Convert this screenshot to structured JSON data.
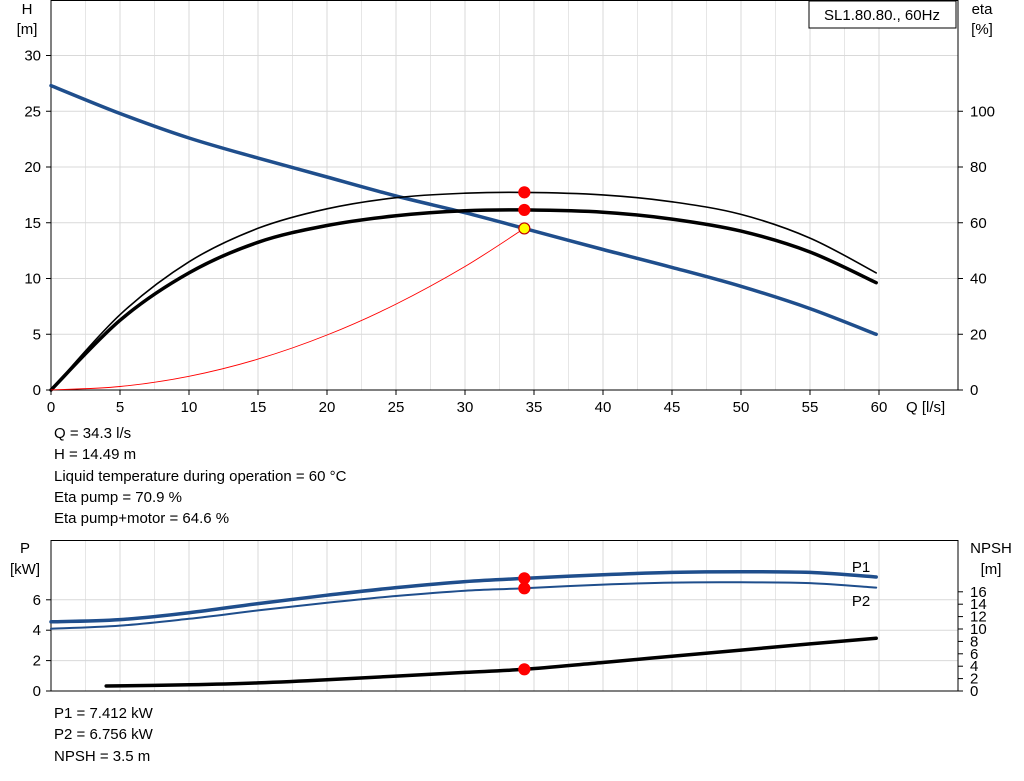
{
  "chart_data": [
    {
      "type": "line",
      "title": "SL1.80.80., 60Hz",
      "xlabel": "Q [l/s]",
      "ylabel": "H [m]",
      "y2label": "eta [%]",
      "xlim": [
        0,
        61
      ],
      "ylim": [
        0,
        32
      ],
      "y2lim": [
        0,
        128
      ],
      "xticks": [
        0,
        5,
        10,
        15,
        20,
        25,
        30,
        35,
        40,
        45,
        50,
        55,
        60
      ],
      "yticks": [
        0,
        5,
        10,
        15,
        20,
        25,
        30
      ],
      "y2ticks": [
        0,
        20,
        40,
        60,
        80,
        100
      ],
      "grid": true,
      "series": [
        {
          "id": "H",
          "axis": "left",
          "color": "#1f4e8c",
          "x": [
            0,
            5,
            10,
            15,
            20,
            25,
            30,
            34.3,
            40,
            45,
            50,
            55,
            59.8
          ],
          "y": [
            27.3,
            24.8,
            22.6,
            20.8,
            19.1,
            17.4,
            15.9,
            14.49,
            12.6,
            11.0,
            9.3,
            7.3,
            5.0
          ]
        },
        {
          "id": "eta_pump",
          "axis": "right",
          "color": "#000000",
          "x": [
            0,
            5,
            10,
            15,
            20,
            25,
            30,
            34.3,
            40,
            45,
            50,
            55,
            59.8
          ],
          "y": [
            0,
            27,
            46,
            58,
            65,
            69,
            70.6,
            70.9,
            70,
            67.5,
            63,
            54.5,
            42
          ]
        },
        {
          "id": "eta_pump_motor",
          "axis": "right",
          "color": "#000000",
          "x": [
            0,
            5,
            10,
            15,
            20,
            25,
            30,
            34.3,
            40,
            45,
            50,
            55,
            59.8
          ],
          "y": [
            0,
            25,
            42,
            53,
            59,
            62.5,
            64.3,
            64.6,
            63.8,
            61.3,
            57,
            49.5,
            38.5
          ]
        },
        {
          "id": "system_curve",
          "axis": "left",
          "color": "#ff0000",
          "x": [
            0,
            5,
            10,
            15,
            20,
            25,
            30,
            34.3
          ],
          "y": [
            0,
            0.31,
            1.23,
            2.77,
            4.93,
            7.7,
            11.08,
            14.49
          ]
        }
      ],
      "operating_points": [
        {
          "x": 34.3,
          "y": 70.9,
          "axis": "right",
          "color": "#ff0000"
        },
        {
          "x": 34.3,
          "y": 64.6,
          "axis": "right",
          "color": "#ff0000"
        },
        {
          "x": 34.3,
          "y": 14.49,
          "axis": "left",
          "color": "#ffff00"
        }
      ]
    },
    {
      "type": "line",
      "ylabel": "P [kW]",
      "y2label": "NPSH [m]",
      "xlim": [
        0,
        61
      ],
      "ylim": [
        0,
        8
      ],
      "y2lim": [
        0,
        20
      ],
      "yticks": [
        0,
        2,
        4,
        6
      ],
      "y2ticks": [
        0,
        2,
        4,
        6,
        8,
        10,
        12,
        14,
        16
      ],
      "grid": true,
      "series": [
        {
          "id": "P1",
          "name": "P1",
          "axis": "left",
          "color": "#1f4e8c",
          "x": [
            0,
            5,
            10,
            15,
            20,
            25,
            30,
            34.3,
            40,
            45,
            50,
            55,
            59.8
          ],
          "y": [
            4.55,
            4.7,
            5.15,
            5.75,
            6.3,
            6.8,
            7.2,
            7.41,
            7.65,
            7.8,
            7.85,
            7.8,
            7.5
          ]
        },
        {
          "id": "P2",
          "name": "P2",
          "axis": "left",
          "color": "#1f4e8c",
          "x": [
            0,
            5,
            10,
            15,
            20,
            25,
            30,
            34.3,
            40,
            45,
            50,
            55,
            59.8
          ],
          "y": [
            4.1,
            4.3,
            4.75,
            5.3,
            5.8,
            6.25,
            6.6,
            6.76,
            7.0,
            7.13,
            7.15,
            7.1,
            6.8
          ]
        },
        {
          "id": "NPSH",
          "axis": "right",
          "color": "#000000",
          "x": [
            4,
            10,
            15,
            20,
            25,
            30,
            34.3,
            40,
            45,
            50,
            55,
            59.8
          ],
          "y": [
            0.8,
            1.0,
            1.3,
            1.8,
            2.4,
            3.0,
            3.5,
            4.6,
            5.6,
            6.6,
            7.6,
            8.5
          ]
        }
      ],
      "operating_points": [
        {
          "x": 34.3,
          "y": 7.412,
          "axis": "left",
          "color": "#ff0000"
        },
        {
          "x": 34.3,
          "y": 6.756,
          "axis": "left",
          "color": "#ff0000"
        },
        {
          "x": 34.3,
          "y": 3.5,
          "axis": "right",
          "color": "#ff0000"
        }
      ]
    }
  ],
  "labels": {
    "top_title": "SL1.80.80., 60Hz",
    "top_y_left": [
      "H",
      "[m]"
    ],
    "top_y_right": [
      "eta",
      "[%]"
    ],
    "x_axis": "Q [l/s]",
    "bottom_y_left": [
      "P",
      "[kW]"
    ],
    "bottom_y_right": [
      "NPSH",
      "[m]"
    ],
    "legend_p1": "P1",
    "legend_p2": "P2"
  },
  "info_top": [
    "Q = 34.3 l/s",
    "H = 14.49 m",
    "Liquid temperature during operation = 60 °C",
    "Eta pump = 70.9 %",
    "Eta pump+motor = 64.6 %"
  ],
  "info_bottom": [
    "P1 = 7.412 kW",
    "P2 = 6.756 kW",
    "NPSH = 3.5 m"
  ]
}
